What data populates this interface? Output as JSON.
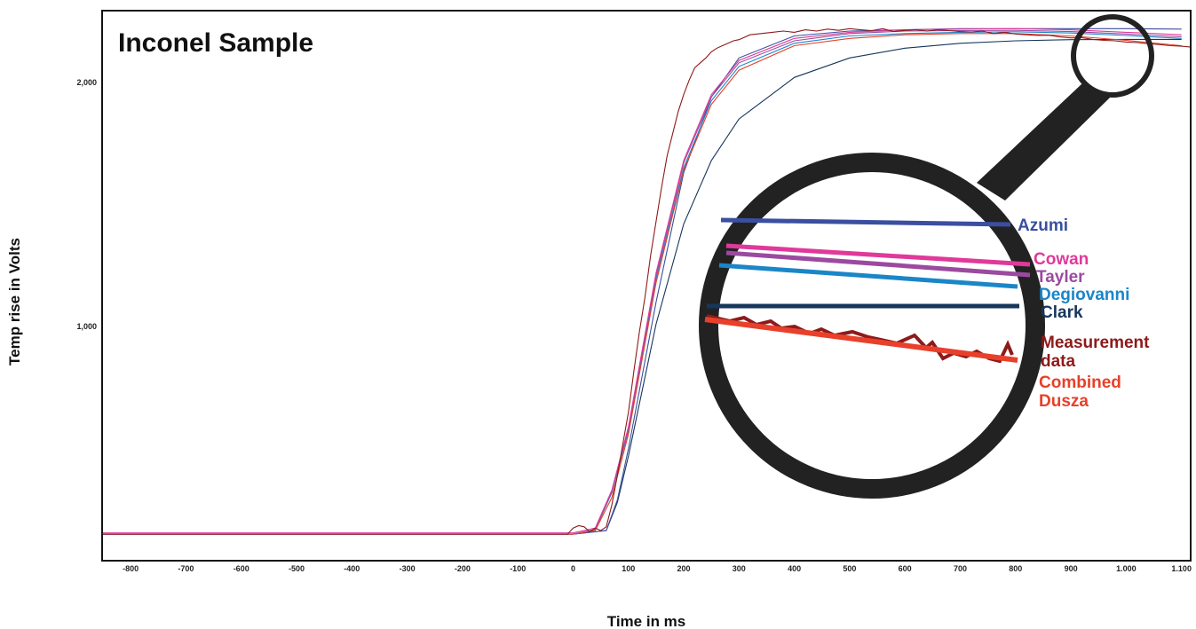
{
  "chart_data": {
    "type": "line",
    "title": "Inconel Sample",
    "xlabel": "Time in ms",
    "ylabel": "Temp rise in Volts",
    "xlim": [
      -850,
      1115
    ],
    "ylim": [
      45,
      2290
    ],
    "grid": false,
    "x_ticks": [
      -800,
      -700,
      -600,
      -500,
      -400,
      -300,
      -200,
      -100,
      0,
      100,
      200,
      300,
      400,
      500,
      600,
      700,
      800,
      900,
      1000,
      1100
    ],
    "x_tick_labels": [
      "-800",
      "-700",
      "-600",
      "-500",
      "-400",
      "-300",
      "-200",
      "-100",
      "0",
      "100",
      "200",
      "300",
      "400",
      "500",
      "600",
      "700",
      "800",
      "900",
      "1.000",
      "1.100"
    ],
    "y_ticks": [
      1000,
      2000
    ],
    "y_tick_labels": [
      "1,000",
      "2,000"
    ],
    "series": [
      {
        "name": "Azumi",
        "color": "#3a4fa0",
        "x": [
          -850,
          0,
          60,
          80,
          100,
          150,
          200,
          250,
          300,
          400,
          500,
          600,
          700,
          800,
          900,
          1000,
          1100
        ],
        "y": [
          150,
          150,
          165,
          290,
          500,
          1100,
          1630,
          1940,
          2100,
          2190,
          2210,
          2215,
          2220,
          2220,
          2220,
          2220,
          2218
        ]
      },
      {
        "name": "Cowan",
        "color": "#e0399a",
        "x": [
          -850,
          0,
          40,
          70,
          100,
          150,
          200,
          250,
          300,
          400,
          500,
          600,
          700,
          800,
          900,
          1000,
          1100
        ],
        "y": [
          155,
          155,
          175,
          330,
          590,
          1220,
          1680,
          1950,
          2090,
          2180,
          2205,
          2215,
          2218,
          2220,
          2215,
          2205,
          2195
        ]
      },
      {
        "name": "Tayler",
        "color": "#9b4aa0",
        "x": [
          -850,
          0,
          40,
          70,
          100,
          150,
          200,
          250,
          300,
          400,
          500,
          600,
          700,
          800,
          900,
          1000,
          1100
        ],
        "y": [
          150,
          150,
          170,
          325,
          585,
          1210,
          1670,
          1940,
          2080,
          2170,
          2200,
          2210,
          2212,
          2213,
          2208,
          2198,
          2187
        ]
      },
      {
        "name": "Degiovanni",
        "color": "#1a86c8",
        "x": [
          -850,
          0,
          40,
          70,
          100,
          150,
          200,
          250,
          300,
          400,
          500,
          600,
          700,
          800,
          900,
          1000,
          1100
        ],
        "y": [
          150,
          150,
          168,
          320,
          575,
          1195,
          1650,
          1925,
          2065,
          2160,
          2190,
          2200,
          2205,
          2207,
          2202,
          2192,
          2180
        ]
      },
      {
        "name": "Clark",
        "color": "#16365c",
        "x": [
          -850,
          0,
          60,
          80,
          100,
          150,
          200,
          250,
          300,
          400,
          500,
          600,
          700,
          800,
          900,
          1000,
          1100
        ],
        "y": [
          150,
          150,
          165,
          280,
          470,
          1010,
          1420,
          1680,
          1850,
          2020,
          2100,
          2140,
          2160,
          2170,
          2175,
          2176,
          2176
        ]
      },
      {
        "name": "Measurement data",
        "color": "#8e1a1a",
        "x": [
          -850,
          -10,
          0,
          10,
          20,
          30,
          40,
          50,
          60,
          70,
          80,
          90,
          100,
          110,
          120,
          130,
          140,
          150,
          160,
          170,
          180,
          190,
          200,
          210,
          220,
          230,
          240,
          250,
          260,
          270,
          280,
          290,
          300,
          320,
          340,
          360,
          380,
          400,
          420,
          440,
          460,
          480,
          500,
          520,
          540,
          560,
          580,
          600,
          620,
          640,
          660,
          680,
          700,
          720,
          740,
          760,
          780,
          800,
          820,
          840,
          860,
          880,
          900,
          920,
          940,
          960,
          980,
          1000,
          1020,
          1040,
          1060,
          1080,
          1100,
          1115
        ],
        "y": [
          150,
          150,
          175,
          185,
          180,
          160,
          175,
          165,
          180,
          270,
          390,
          520,
          650,
          820,
          980,
          1120,
          1290,
          1430,
          1570,
          1700,
          1790,
          1880,
          1950,
          2010,
          2060,
          2080,
          2100,
          2125,
          2140,
          2150,
          2160,
          2170,
          2175,
          2195,
          2200,
          2205,
          2210,
          2205,
          2215,
          2210,
          2218,
          2213,
          2220,
          2215,
          2212,
          2220,
          2208,
          2213,
          2215,
          2210,
          2215,
          2212,
          2208,
          2206,
          2210,
          2200,
          2205,
          2198,
          2195,
          2192,
          2193,
          2186,
          2182,
          2183,
          2176,
          2172,
          2170,
          2165,
          2163,
          2158,
          2155,
          2150,
          2148,
          2145
        ]
      },
      {
        "name": "Combined Dusza",
        "color": "#e8402a",
        "x": [
          -850,
          0,
          40,
          70,
          100,
          150,
          200,
          250,
          300,
          400,
          500,
          600,
          700,
          800,
          900,
          1000,
          1100
        ],
        "y": [
          150,
          150,
          165,
          300,
          560,
          1180,
          1640,
          1910,
          2050,
          2150,
          2180,
          2195,
          2200,
          2200,
          2190,
          2172,
          2150
        ]
      }
    ]
  },
  "inset": {
    "labels": [
      "Azumi",
      "Cowan",
      "Tayler",
      "Degiovanni",
      "Clark",
      "Measurement",
      "data",
      "Combined",
      "Dusza"
    ]
  }
}
